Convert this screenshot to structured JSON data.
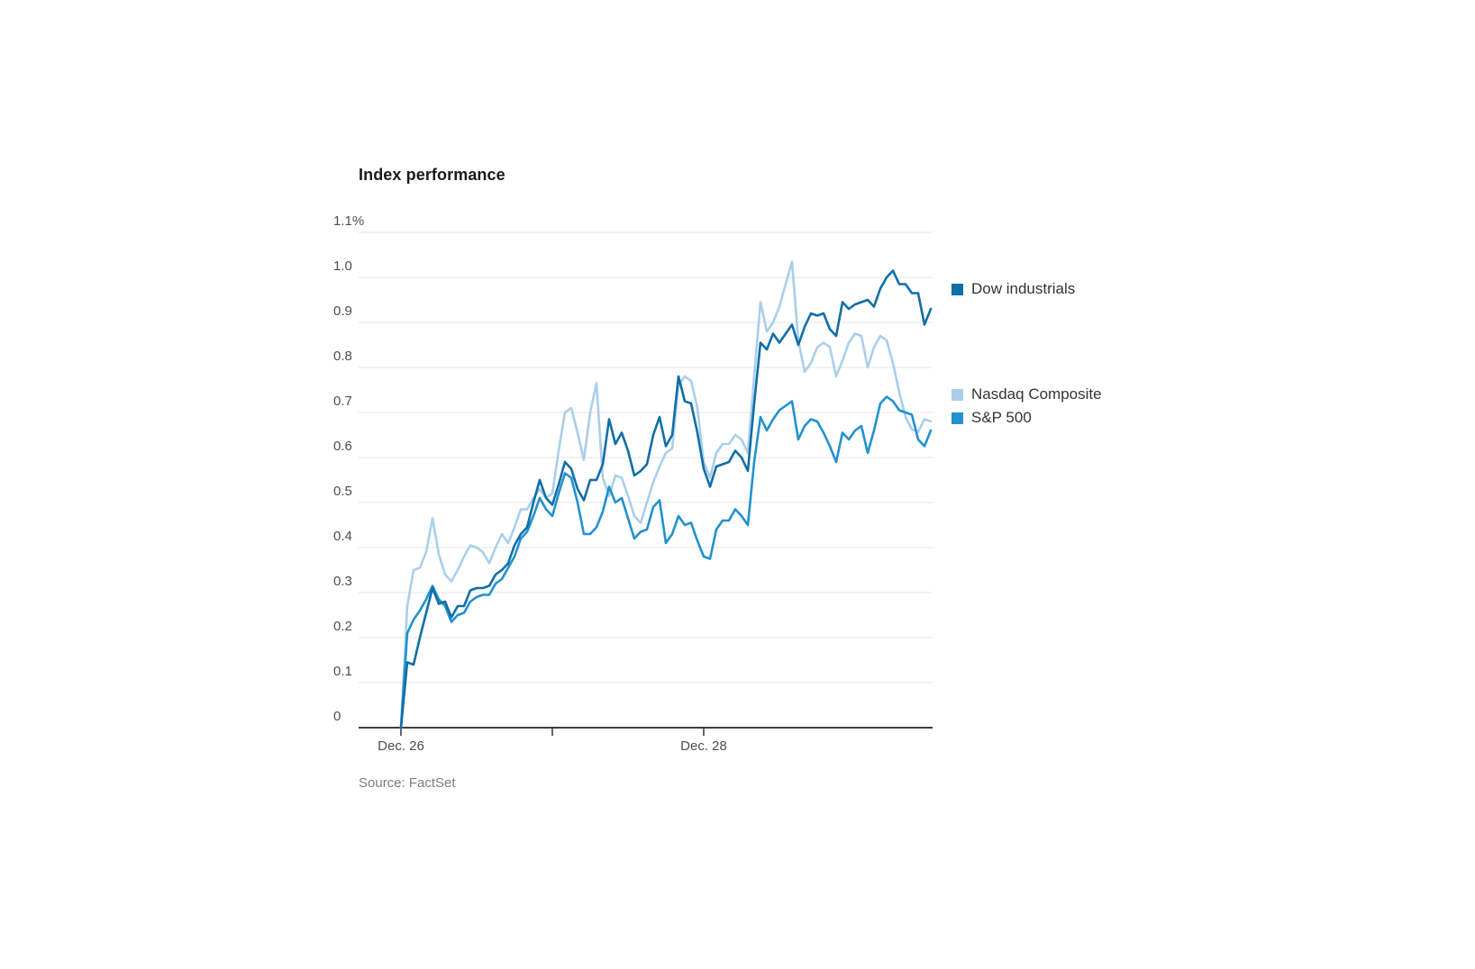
{
  "page": {
    "title": "Index performance",
    "source": "Source: FactSet"
  },
  "chart_data": {
    "type": "line",
    "title": "Index performance",
    "ylabel": "",
    "ylim": [
      0,
      1.1
    ],
    "y_tick_step": 0.1,
    "y_top_label": "1.1%",
    "grid": true,
    "legend_position": "right",
    "x_unit": "trading days starting Dec. 26 market open",
    "x_range_days": [
      0,
      3.5
    ],
    "x_ticks_days": [
      0,
      1,
      2
    ],
    "x_tick_labels": [
      {
        "day": 0,
        "label": "Dec. 26"
      },
      {
        "day": 2,
        "label": "Dec. 28"
      }
    ],
    "sample_step_days": 0.0416667,
    "series": [
      {
        "name": "Dow industrials",
        "color": "#0f6ea6",
        "z": 3,
        "values": [
          0.0,
          0.145,
          0.14,
          0.2,
          0.255,
          0.31,
          0.275,
          0.28,
          0.245,
          0.27,
          0.27,
          0.305,
          0.31,
          0.31,
          0.315,
          0.34,
          0.35,
          0.365,
          0.405,
          0.43,
          0.445,
          0.5,
          0.55,
          0.51,
          0.495,
          0.54,
          0.59,
          0.575,
          0.53,
          0.505,
          0.55,
          0.55,
          0.585,
          0.685,
          0.63,
          0.655,
          0.615,
          0.56,
          0.57,
          0.585,
          0.65,
          0.69,
          0.625,
          0.65,
          0.78,
          0.725,
          0.72,
          0.655,
          0.575,
          0.535,
          0.58,
          0.585,
          0.59,
          0.615,
          0.6,
          0.57,
          0.72,
          0.855,
          0.84,
          0.875,
          0.855,
          0.875,
          0.895,
          0.85,
          0.89,
          0.92,
          0.915,
          0.92,
          0.885,
          0.87,
          0.945,
          0.93,
          0.94,
          0.945,
          0.95,
          0.935,
          0.975,
          1.0,
          1.015,
          0.985,
          0.985,
          0.965,
          0.965,
          0.895,
          0.93
        ]
      },
      {
        "name": "Nasdaq Composite",
        "color": "#a9cfea",
        "z": 1,
        "values": [
          0.0,
          0.27,
          0.35,
          0.355,
          0.39,
          0.465,
          0.385,
          0.34,
          0.325,
          0.35,
          0.38,
          0.405,
          0.4,
          0.39,
          0.365,
          0.4,
          0.43,
          0.41,
          0.445,
          0.485,
          0.485,
          0.51,
          0.53,
          0.51,
          0.52,
          0.615,
          0.7,
          0.71,
          0.655,
          0.595,
          0.7,
          0.765,
          0.555,
          0.515,
          0.56,
          0.555,
          0.515,
          0.47,
          0.455,
          0.5,
          0.545,
          0.58,
          0.61,
          0.62,
          0.76,
          0.78,
          0.77,
          0.71,
          0.59,
          0.555,
          0.61,
          0.63,
          0.63,
          0.65,
          0.64,
          0.61,
          0.78,
          0.945,
          0.88,
          0.9,
          0.935,
          0.985,
          1.035,
          0.86,
          0.79,
          0.81,
          0.845,
          0.855,
          0.845,
          0.78,
          0.815,
          0.855,
          0.875,
          0.87,
          0.8,
          0.845,
          0.87,
          0.86,
          0.81,
          0.745,
          0.69,
          0.662,
          0.657,
          0.685,
          0.68
        ]
      },
      {
        "name": "S&P 500",
        "color": "#2191cf",
        "z": 2,
        "values": [
          0.0,
          0.21,
          0.24,
          0.26,
          0.285,
          0.315,
          0.285,
          0.27,
          0.235,
          0.25,
          0.255,
          0.28,
          0.29,
          0.295,
          0.295,
          0.32,
          0.33,
          0.355,
          0.38,
          0.42,
          0.435,
          0.47,
          0.51,
          0.485,
          0.47,
          0.52,
          0.565,
          0.555,
          0.5,
          0.43,
          0.43,
          0.445,
          0.48,
          0.535,
          0.5,
          0.51,
          0.465,
          0.42,
          0.435,
          0.44,
          0.49,
          0.505,
          0.41,
          0.43,
          0.47,
          0.45,
          0.455,
          0.415,
          0.38,
          0.375,
          0.44,
          0.46,
          0.46,
          0.485,
          0.47,
          0.45,
          0.59,
          0.69,
          0.66,
          0.685,
          0.705,
          0.715,
          0.725,
          0.64,
          0.67,
          0.685,
          0.68,
          0.655,
          0.625,
          0.59,
          0.655,
          0.64,
          0.66,
          0.67,
          0.61,
          0.66,
          0.72,
          0.735,
          0.725,
          0.705,
          0.7,
          0.695,
          0.64,
          0.625,
          0.66
        ]
      }
    ],
    "style": {
      "grid_color": "#e6e6e6",
      "axis_color": "#3f3f3f",
      "tick_color": "#666666",
      "line_width": 2.6
    }
  },
  "legend": {
    "note": "labels bound from chart_data.series"
  }
}
